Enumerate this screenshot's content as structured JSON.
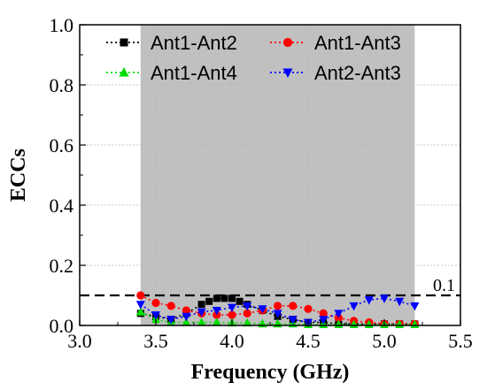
{
  "chart_data": {
    "type": "line",
    "xlabel": "Frequency (GHz)",
    "ylabel": "ECCs",
    "xlim": [
      3.0,
      5.5
    ],
    "ylim": [
      0.0,
      1.0
    ],
    "xticks": [
      "3.0",
      "3.5",
      "4.0",
      "4.5",
      "5.0",
      "5.5"
    ],
    "yticks": [
      "0.0",
      "0.2",
      "0.4",
      "0.6",
      "0.8",
      "1.0"
    ],
    "grid": true,
    "legend_position": "top",
    "shaded_band": {
      "x_start": 3.4,
      "x_end": 5.2,
      "color": "#c0c0c0"
    },
    "reference_line": {
      "y": 0.1,
      "label": "0.1"
    },
    "series": [
      {
        "name": "Ant1-Ant2",
        "color": "#000000",
        "marker": "square",
        "x": [
          3.4,
          3.5,
          3.6,
          3.7,
          3.8,
          3.85,
          3.9,
          3.95,
          4.0,
          4.05,
          4.1,
          4.2,
          4.3,
          4.4,
          4.5,
          4.6,
          4.7,
          4.8,
          4.9,
          5.0,
          5.1,
          5.2
        ],
        "y": [
          0.04,
          0.03,
          0.02,
          0.04,
          0.07,
          0.08,
          0.09,
          0.09,
          0.09,
          0.08,
          0.07,
          0.05,
          0.03,
          0.02,
          0.01,
          0.01,
          0.005,
          0.005,
          0.005,
          0.005,
          0.005,
          0.005
        ]
      },
      {
        "name": "Ant1-Ant3",
        "color": "#ff0000",
        "marker": "circle",
        "x": [
          3.4,
          3.5,
          3.6,
          3.7,
          3.8,
          3.9,
          4.0,
          4.1,
          4.2,
          4.3,
          4.4,
          4.5,
          4.6,
          4.7,
          4.8,
          4.9,
          5.0,
          5.1,
          5.2
        ],
        "y": [
          0.1,
          0.075,
          0.065,
          0.05,
          0.04,
          0.035,
          0.035,
          0.04,
          0.05,
          0.065,
          0.065,
          0.055,
          0.04,
          0.025,
          0.015,
          0.01,
          0.005,
          0.005,
          0.005
        ]
      },
      {
        "name": "Ant1-Ant4",
        "color": "#00dd00",
        "marker": "triangle-up",
        "x": [
          3.4,
          3.5,
          3.6,
          3.7,
          3.8,
          3.9,
          4.0,
          4.1,
          4.2,
          4.3,
          4.4,
          4.5,
          4.6,
          4.7,
          4.8,
          4.9,
          5.0,
          5.1,
          5.2
        ],
        "y": [
          0.045,
          0.02,
          0.01,
          0.01,
          0.01,
          0.01,
          0.008,
          0.008,
          0.005,
          0.005,
          0.005,
          0.003,
          0.003,
          0.003,
          0.003,
          0.003,
          0.003,
          0.003,
          0.003
        ]
      },
      {
        "name": "Ant2-Ant3",
        "color": "#0000ff",
        "marker": "triangle-down",
        "x": [
          3.4,
          3.5,
          3.6,
          3.7,
          3.8,
          3.9,
          4.0,
          4.1,
          4.2,
          4.3,
          4.4,
          4.5,
          4.6,
          4.7,
          4.8,
          4.9,
          5.0,
          5.1,
          5.2
        ],
        "y": [
          0.07,
          0.035,
          0.02,
          0.03,
          0.045,
          0.05,
          0.06,
          0.065,
          0.055,
          0.04,
          0.02,
          0.01,
          0.02,
          0.04,
          0.065,
          0.085,
          0.09,
          0.08,
          0.065
        ]
      }
    ]
  }
}
